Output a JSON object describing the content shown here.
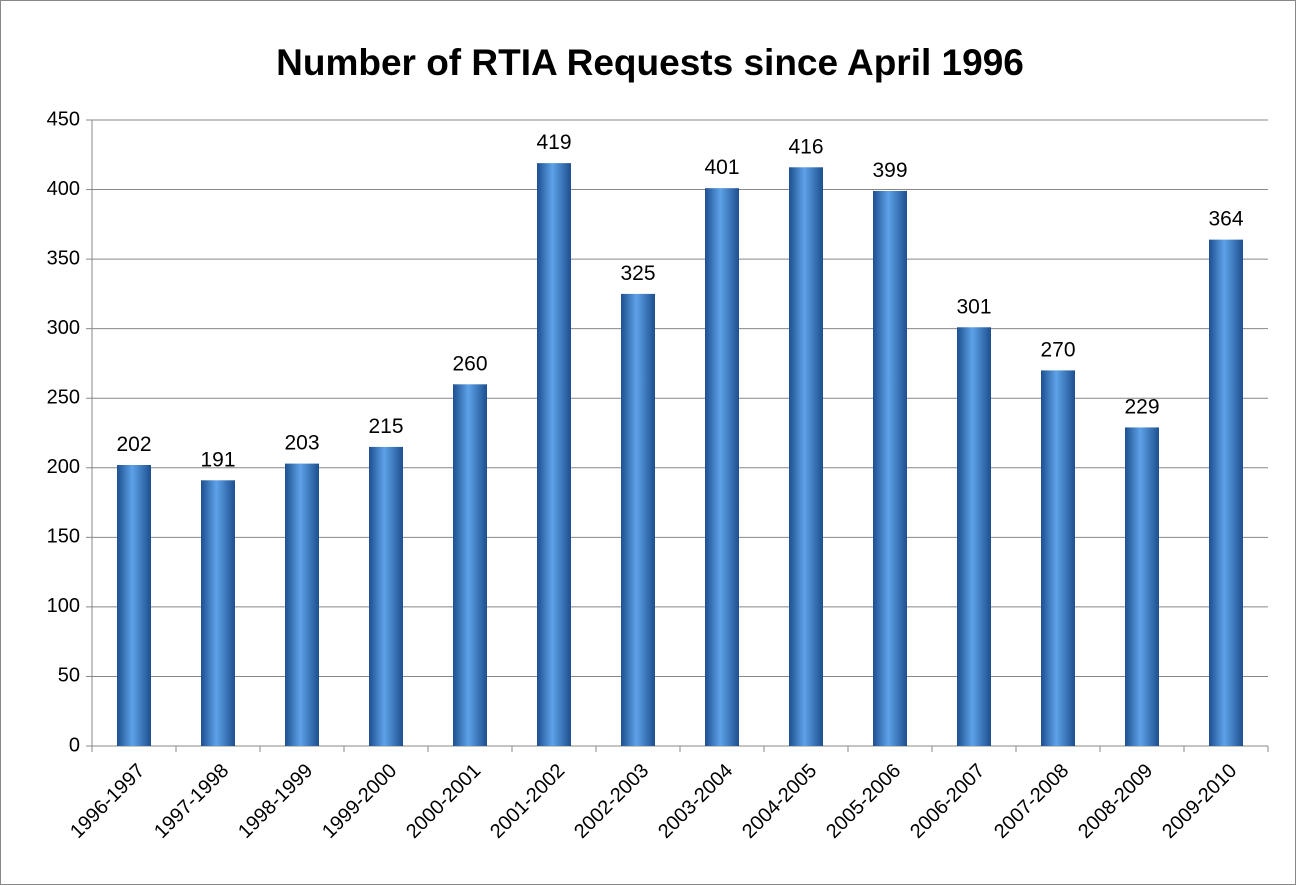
{
  "chart_data": {
    "type": "bar",
    "title": "Number of RTIA Requests since April 1996",
    "categories": [
      "1996-1997",
      "1997-1998",
      "1998-1999",
      "1999-2000",
      "2000-2001",
      "2001-2002",
      "2002-2003",
      "2003-2004",
      "2004-2005",
      "2005-2006",
      "2006-2007",
      "2007-2008",
      "2008-2009",
      "2009-2010"
    ],
    "values": [
      202,
      191,
      203,
      215,
      260,
      419,
      325,
      401,
      416,
      399,
      301,
      270,
      229,
      364
    ],
    "color": "#3a7fd0",
    "ylim": [
      0,
      450
    ],
    "yticks": [
      0,
      50,
      100,
      150,
      200,
      250,
      300,
      350,
      400,
      450
    ],
    "grid": true
  }
}
